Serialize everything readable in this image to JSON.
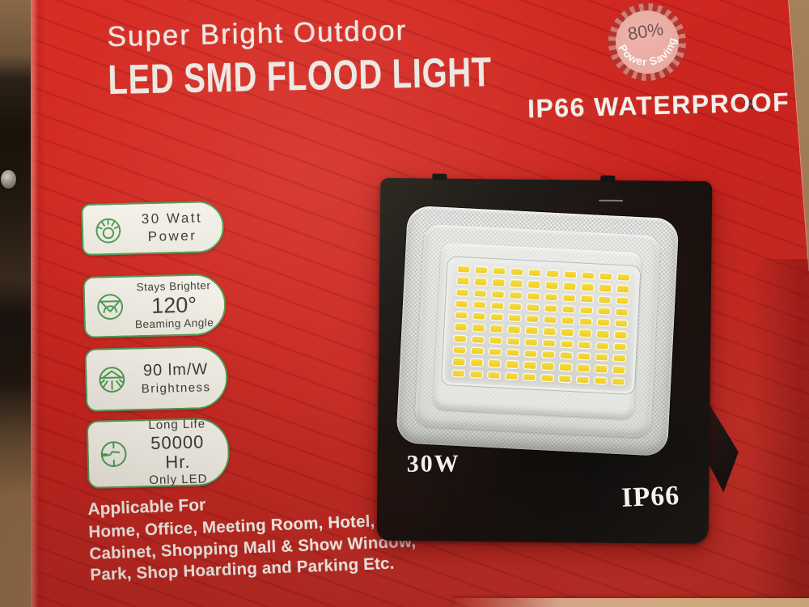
{
  "box": {
    "title_line1": "Super Bright Outdoor",
    "title_line2": "LED SMD FLOOD LIGHT",
    "waterproof_label": "IP66 WATERPROOF",
    "power_saving": {
      "percent": "80%",
      "label": "Power Saving"
    },
    "features": [
      {
        "icon": "lamp-power-icon",
        "lines": [
          "30 Watt",
          "Power"
        ]
      },
      {
        "icon": "beam-angle-icon",
        "lines": [
          "Stays Brighter",
          "120°",
          "Beaming Angle"
        ]
      },
      {
        "icon": "brightness-icon",
        "lines": [
          "90 lm/W",
          "Brightness"
        ]
      },
      {
        "icon": "long-life-icon",
        "lines": [
          "Long Life",
          "50000 Hr.",
          "Only LED"
        ]
      }
    ],
    "applicable": {
      "heading": "Applicable For",
      "lines": [
        "Home, Office, Meeting Room, Hotel,",
        "Cabinet, Shopping Mall & Show Window,",
        "Park, Shop Hoarding and Parking Etc."
      ]
    },
    "floodlight": {
      "wattage_label": "30W",
      "ip_label": "IP66",
      "led_grid": {
        "rows": 10,
        "cols": 10
      }
    },
    "colors": {
      "box_red": "#c9241f",
      "badge_green": "#4f9e55",
      "led_yellow": "#efcd29",
      "cream": "#ece8e1",
      "cardboard": "#9c7a54",
      "frame_black": "#14110f",
      "burst_pink": "#e5a79f",
      "burst_red": "#b23430"
    }
  }
}
